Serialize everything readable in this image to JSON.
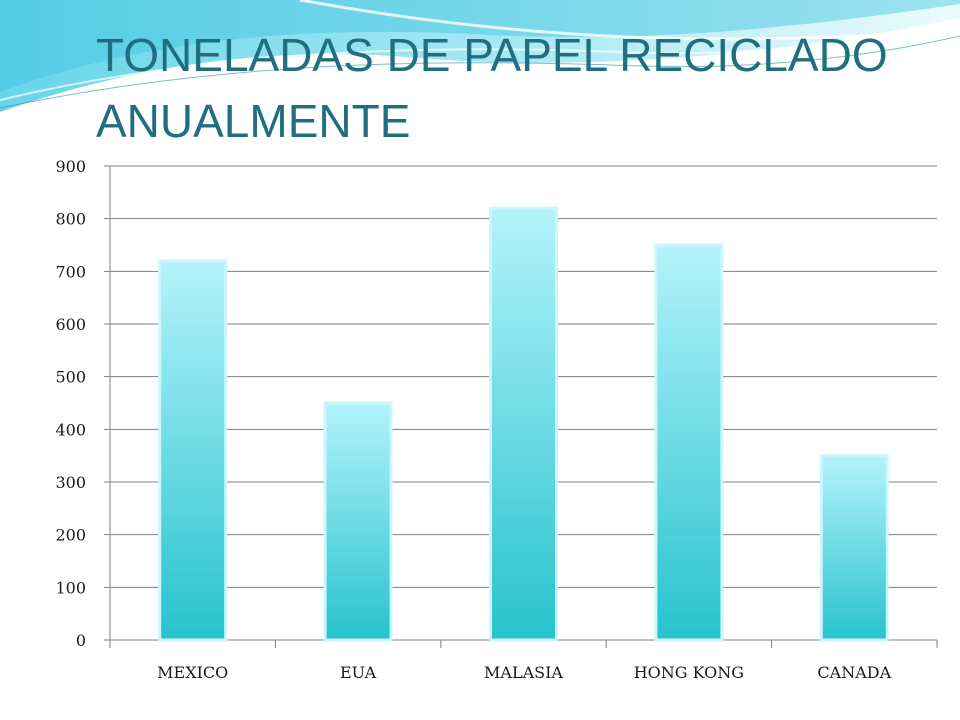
{
  "chart_data": {
    "type": "bar",
    "title": "TONELADAS DE PAPEL RECICLADO ANUALMENTE",
    "categories": [
      "MEXICO",
      "EUA",
      "MALASIA",
      "HONG KONG",
      "CANADA"
    ],
    "values": [
      720,
      450,
      820,
      750,
      350
    ],
    "ylim": [
      0,
      900
    ],
    "yticks": [
      0,
      100,
      200,
      300,
      400,
      500,
      600,
      700,
      800,
      900
    ],
    "grid": true,
    "legend": "none",
    "colors": {
      "bar_top": "#b4f3fb",
      "bar_bottom": "#27c3ce",
      "bar_edge": "#ccf6fb",
      "grid": "#7f7f7f",
      "title": "#1f6f80"
    }
  }
}
